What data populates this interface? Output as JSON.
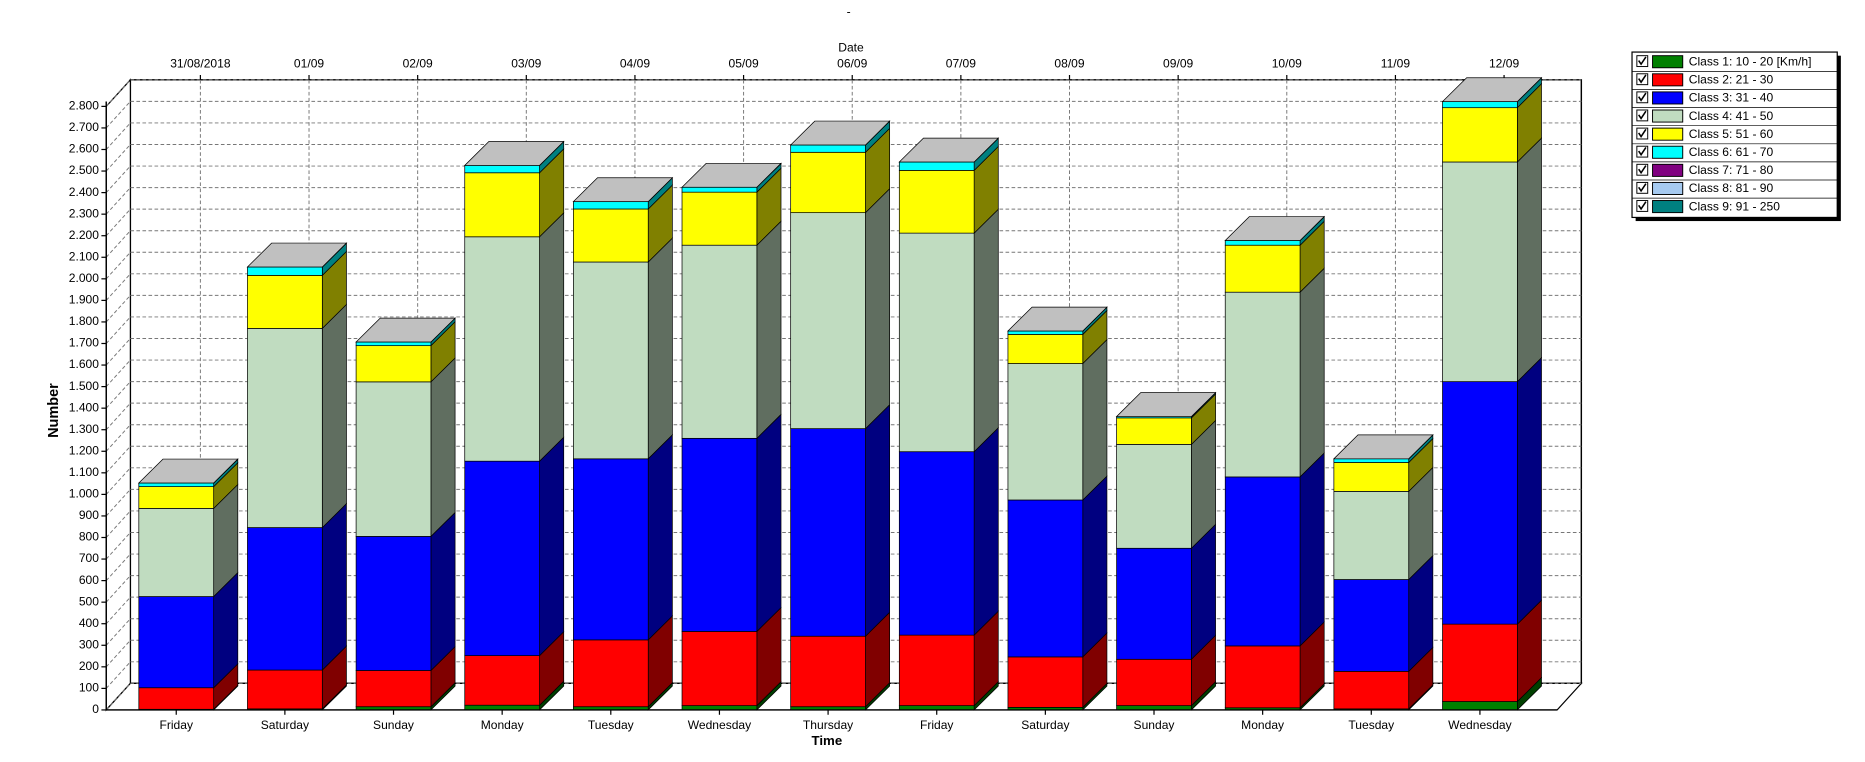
{
  "chart_data": {
    "type": "bar3d_stacked",
    "title": "-",
    "x_top_label": "Date",
    "x_label": "Time",
    "y_label": "Number",
    "categories_top": [
      "31/08/2018",
      "01/09",
      "02/09",
      "03/09",
      "04/09",
      "05/09",
      "06/09",
      "07/09",
      "08/09",
      "09/09",
      "10/09",
      "11/09",
      "12/09"
    ],
    "categories": [
      "Friday",
      "Saturday",
      "Sunday",
      "Monday",
      "Tuesday",
      "Wednesday",
      "Thursday",
      "Friday",
      "Saturday",
      "Sunday",
      "Monday",
      "Tuesday",
      "Wednesday"
    ],
    "series": [
      {
        "name": "Class 1: 10 - 20 [Km/h]",
        "color": "#008000",
        "values": [
          3,
          5,
          15,
          22,
          15,
          20,
          15,
          20,
          12,
          20,
          10,
          5,
          39
        ]
      },
      {
        "name": "Class 2: 21 - 30",
        "color": "#ff0000",
        "values": [
          100,
          180,
          168,
          230,
          310,
          344,
          327,
          327,
          234,
          215,
          287,
          174,
          359
        ]
      },
      {
        "name": "Class 3: 31 - 40",
        "color": "#0000ff",
        "values": [
          423,
          661,
          622,
          902,
          840,
          896,
          963,
          851,
          728,
          515,
          784,
          426,
          1125
        ]
      },
      {
        "name": "Class 4: 41 - 50",
        "color": "#c0dcc0",
        "values": [
          409,
          924,
          717,
          1041,
          913,
          896,
          1002,
          1014,
          633,
          482,
          857,
          409,
          1019
        ]
      },
      {
        "name": "Class 5: 51 - 60",
        "color": "#ffff00",
        "values": [
          101,
          246,
          168,
          297,
          246,
          246,
          280,
          291,
          135,
          123,
          218,
          134,
          252
        ]
      },
      {
        "name": "Class 6: 61 - 70",
        "color": "#00ffff",
        "values": [
          17,
          39,
          17,
          34,
          34,
          23,
          34,
          39,
          16,
          6,
          22,
          17,
          28
        ]
      },
      {
        "name": "Class 7: 71 - 80",
        "color": "#800080",
        "values": [
          0,
          0,
          0,
          0,
          0,
          0,
          0,
          0,
          0,
          0,
          0,
          0,
          0
        ]
      },
      {
        "name": "Class 8: 81 - 90",
        "color": "#a6caf0",
        "values": [
          0,
          0,
          0,
          0,
          0,
          0,
          0,
          0,
          0,
          0,
          0,
          0,
          0
        ]
      },
      {
        "name": "Class 9: 91 - 250",
        "color": "#008080",
        "values": [
          0,
          0,
          0,
          0,
          0,
          0,
          0,
          0,
          0,
          0,
          0,
          0,
          0
        ]
      }
    ],
    "ylim": [
      0,
      2800
    ],
    "yticks": [
      0,
      100,
      200,
      300,
      400,
      500,
      600,
      700,
      800,
      900,
      {
        "value": 1000,
        "label": "1.000"
      },
      {
        "value": 1100,
        "label": "1.100"
      },
      {
        "value": 1200,
        "label": "1.200"
      },
      {
        "value": 1300,
        "label": "1.300"
      },
      {
        "value": 1400,
        "label": "1.400"
      },
      {
        "value": 1500,
        "label": "1.500"
      },
      {
        "value": 1600,
        "label": "1.600"
      },
      {
        "value": 1700,
        "label": "1.700"
      },
      {
        "value": 1800,
        "label": "1.800"
      },
      {
        "value": 1900,
        "label": "1.900"
      },
      {
        "value": 2000,
        "label": "2.000"
      },
      {
        "value": 2100,
        "label": "2.100"
      },
      {
        "value": 2200,
        "label": "2.200"
      },
      {
        "value": 2300,
        "label": "2.300"
      },
      {
        "value": 2400,
        "label": "2.400"
      },
      {
        "value": 2500,
        "label": "2.500"
      },
      {
        "value": 2600,
        "label": "2.600"
      },
      {
        "value": 2700,
        "label": "2.700"
      },
      {
        "value": 2800,
        "label": "2.800"
      }
    ],
    "grid": true,
    "legend": "right"
  }
}
